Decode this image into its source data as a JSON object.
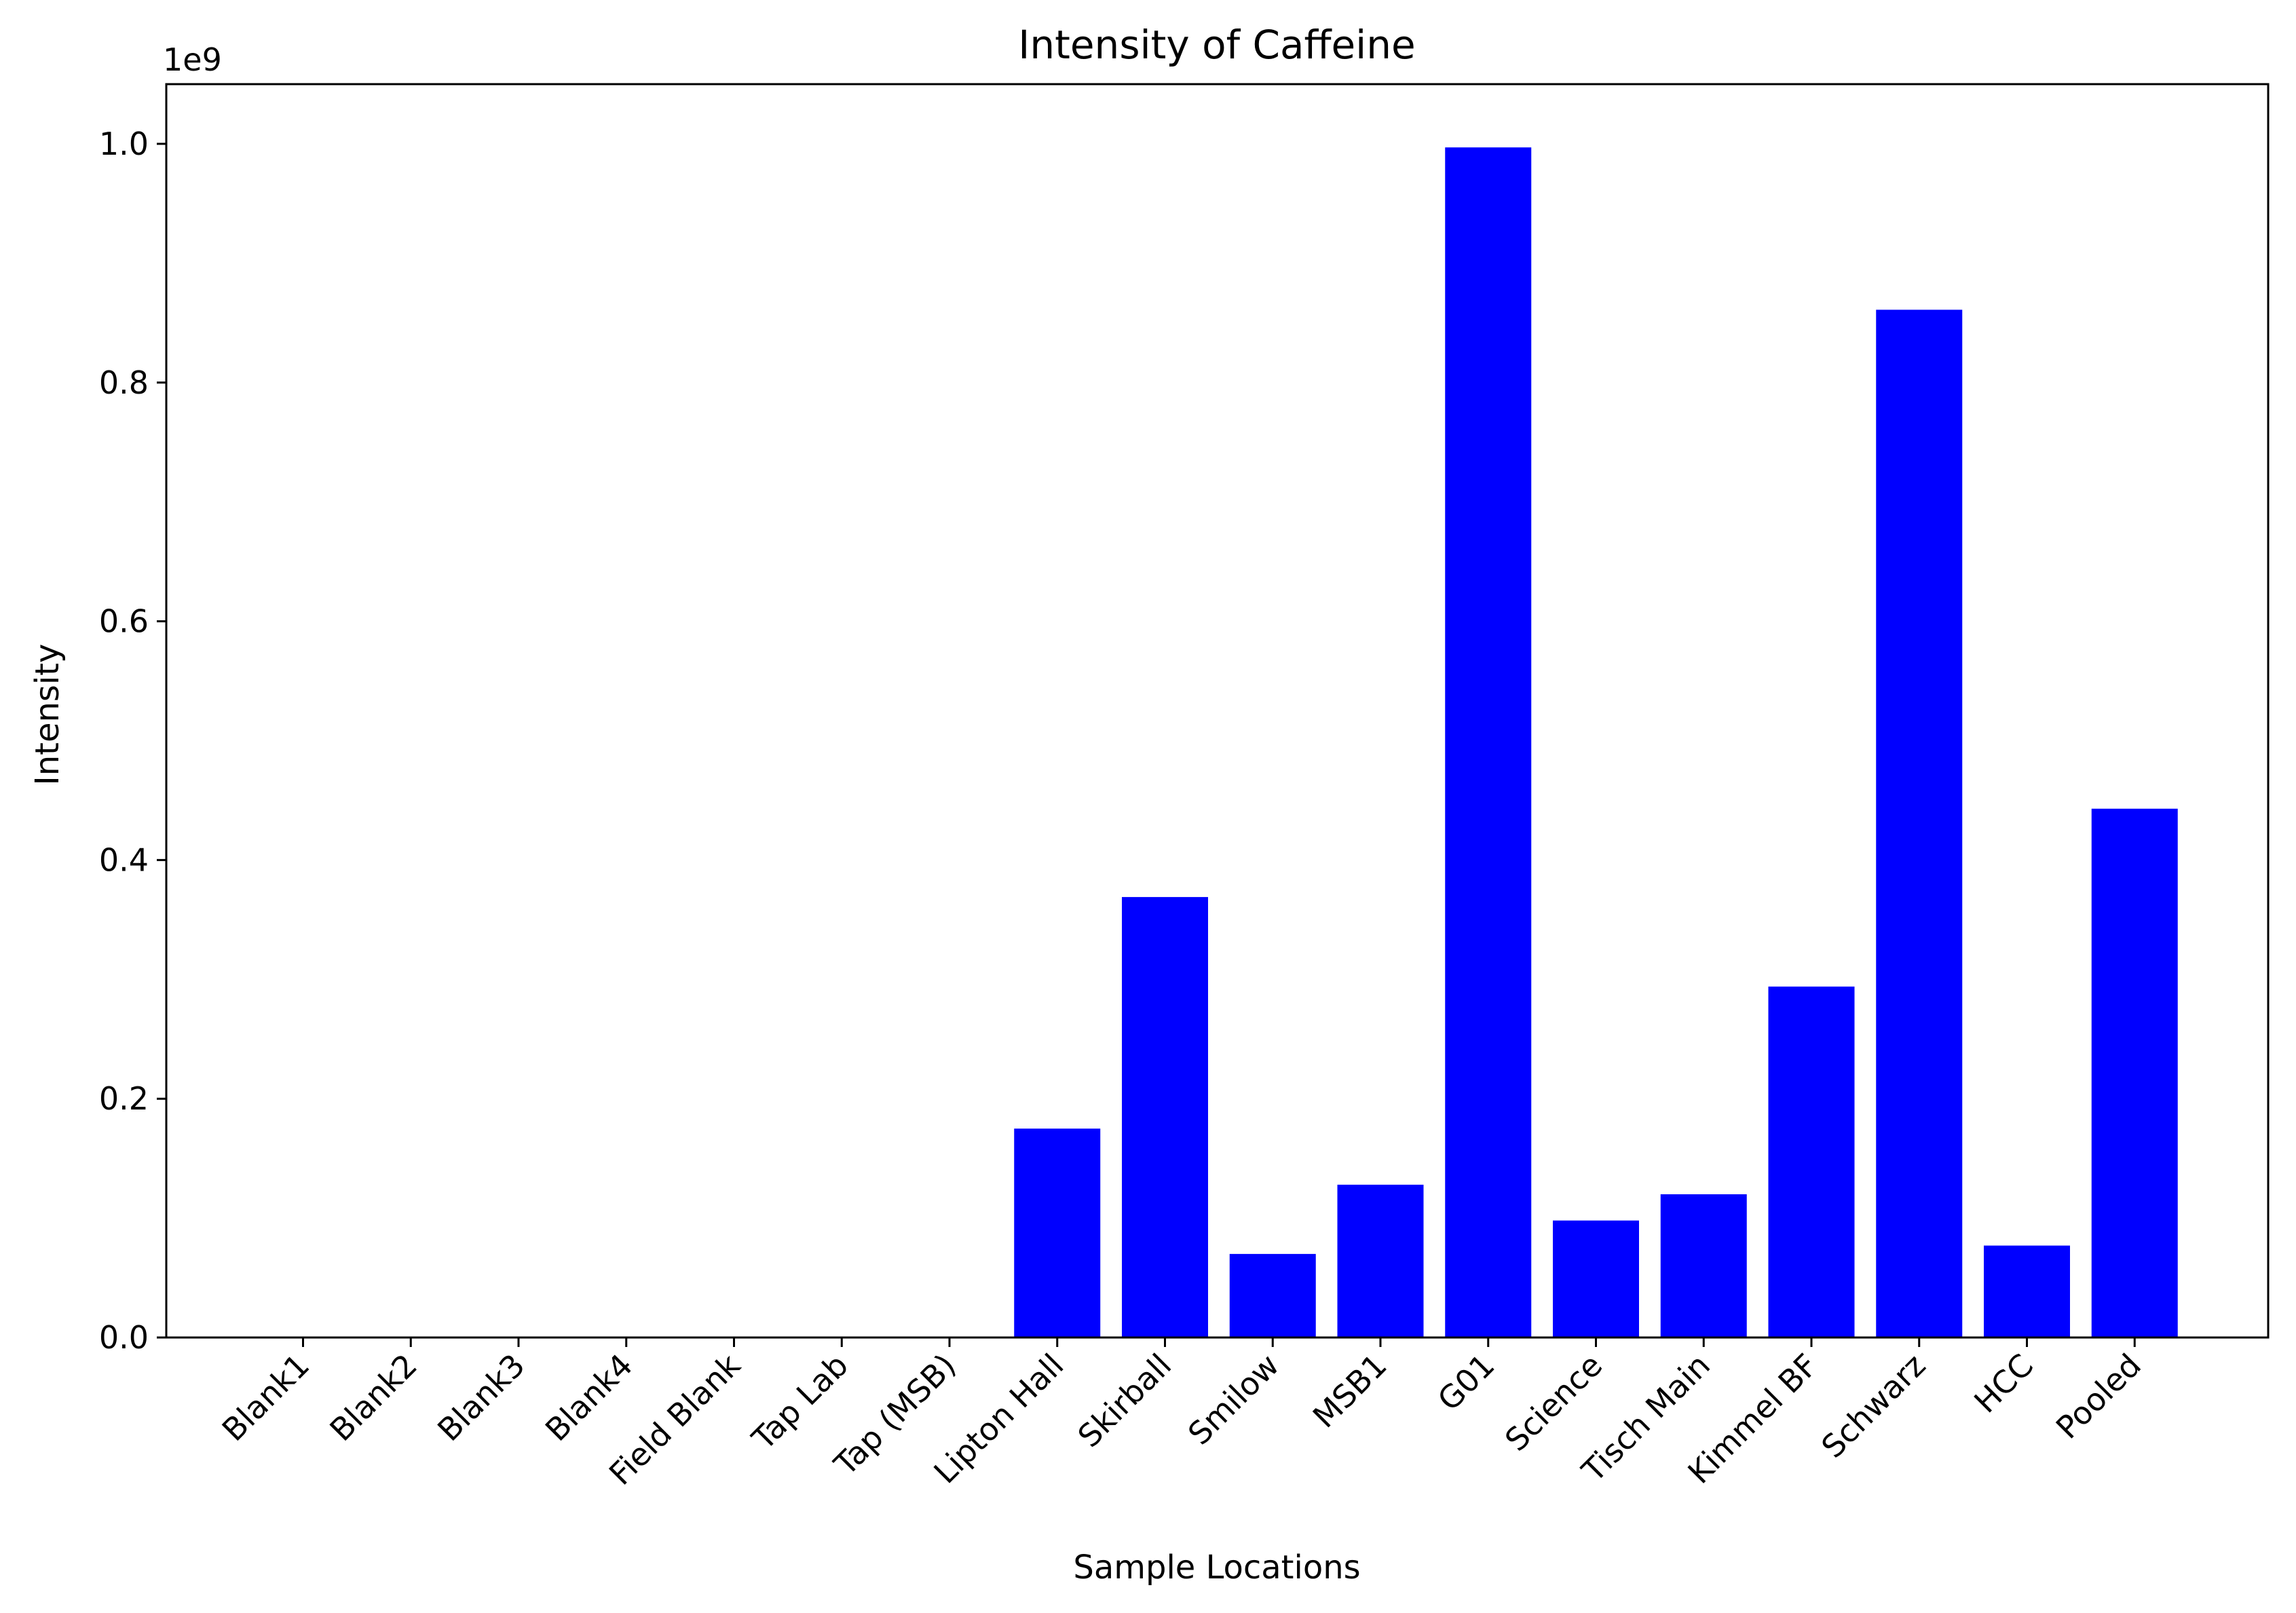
{
  "chart_data": {
    "type": "bar",
    "title": "Intensity of Caffeine",
    "xlabel": "Sample Locations",
    "ylabel": "Intensity",
    "y_offset_label": "1e9",
    "y_scale": 1000000000,
    "ylim": [
      0,
      1.05
    ],
    "yticks": [
      0.0,
      0.2,
      0.4,
      0.6,
      0.8,
      1.0
    ],
    "ytick_labels": [
      "0.0",
      "0.2",
      "0.4",
      "0.6",
      "0.8",
      "1.0"
    ],
    "grid": false,
    "bar_color": "#0000ff",
    "categories": [
      "Blank1",
      "Blank2",
      "Blank3",
      "Blank4",
      "Field Blank",
      "Tap Lab",
      "Tap (MSB)",
      "Lipton Hall",
      "Skirball",
      "Smilow",
      "MSB1",
      "G01",
      "Science",
      "Tisch Main",
      "Kimmel BF",
      "Schwarz",
      "HCC",
      "Pooled"
    ],
    "values": [
      0,
      0,
      0,
      0,
      0,
      0,
      0,
      0.175,
      0.369,
      0.07,
      0.128,
      0.997,
      0.098,
      0.12,
      0.294,
      0.861,
      0.077,
      0.443
    ]
  }
}
